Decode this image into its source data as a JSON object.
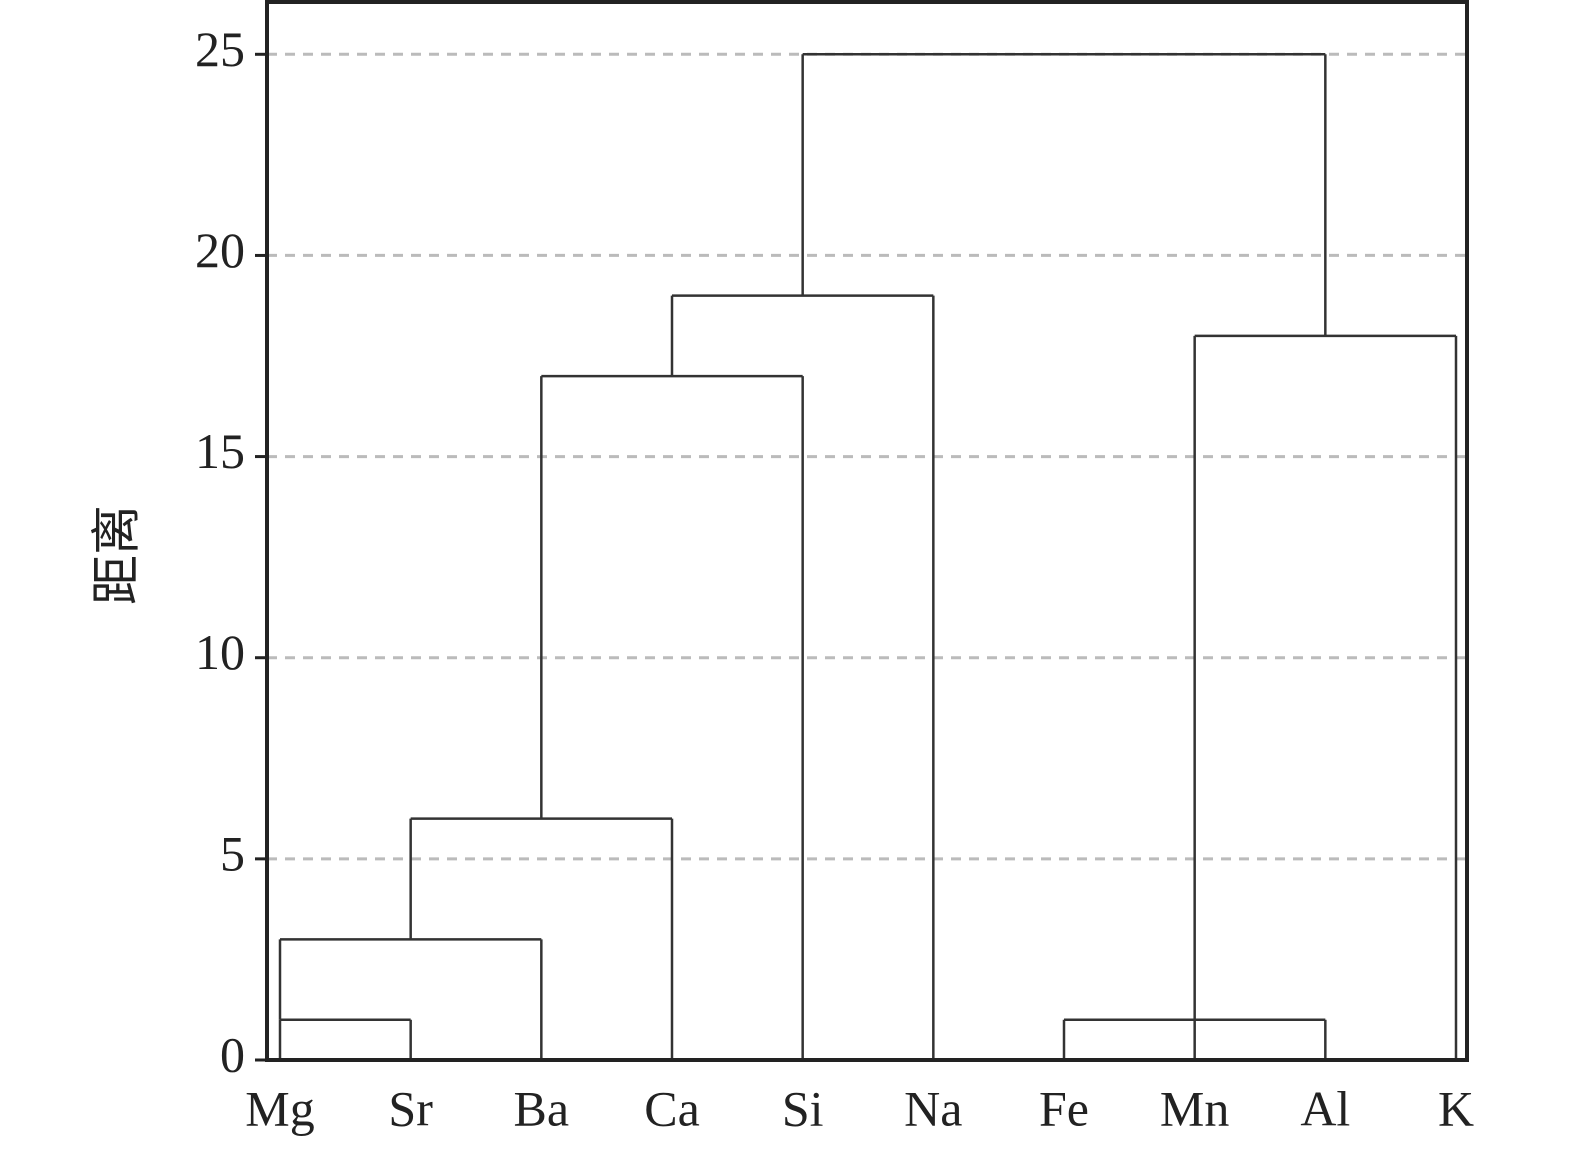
{
  "chart_data": {
    "type": "dendrogram",
    "y_label": "距离",
    "categories": [
      "Mg",
      "Sr",
      "Ba",
      "Ca",
      "Si",
      "Na",
      "Fe",
      "Mn",
      "Al",
      "K"
    ],
    "merges": [
      {
        "legs": [
          0,
          1
        ],
        "distance": 1
      },
      {
        "legs": [
          0,
          2
        ],
        "distance": 3
      },
      {
        "legs": [
          1,
          3
        ],
        "distance": 6
      },
      {
        "legs": [
          6,
          7,
          8
        ],
        "distance": 1
      },
      {
        "legs": [
          2,
          4
        ],
        "distance": 17
      },
      {
        "legs": [
          7,
          9
        ],
        "distance": 18
      },
      {
        "legs": [
          3,
          5
        ],
        "distance": 19
      },
      {
        "legs": [
          4,
          8
        ],
        "distance": 25
      }
    ],
    "color": "#333333",
    "ylim": [
      0,
      26.3
    ],
    "yticks": [
      0,
      5,
      10,
      15,
      20,
      25
    ],
    "grid": true
  }
}
